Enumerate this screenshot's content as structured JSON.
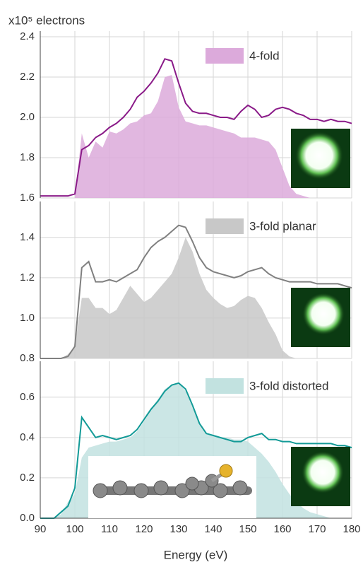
{
  "chart_data": [
    {
      "type": "line",
      "ylabel": "x10⁵ electrons",
      "x": [
        90,
        92,
        94,
        96,
        98,
        100,
        102,
        104,
        106,
        108,
        110,
        112,
        114,
        116,
        118,
        120,
        122,
        124,
        126,
        128,
        130,
        132,
        134,
        136,
        138,
        140,
        142,
        144,
        146,
        148,
        150,
        152,
        154,
        156,
        158,
        160,
        162,
        164,
        166,
        168,
        170,
        172,
        174,
        176,
        178,
        180
      ],
      "series": [
        {
          "name": "4-fold",
          "style": "area",
          "color": "#dcaadb",
          "values": [
            1.6,
            1.6,
            1.6,
            1.6,
            1.6,
            1.6,
            1.92,
            1.8,
            1.88,
            1.85,
            1.93,
            1.92,
            1.94,
            1.97,
            1.98,
            2.01,
            2.02,
            2.08,
            2.2,
            2.21,
            2.05,
            1.98,
            1.97,
            1.96,
            1.96,
            1.95,
            1.94,
            1.93,
            1.92,
            1.9,
            1.9,
            1.9,
            1.89,
            1.88,
            1.84,
            1.75,
            1.66,
            1.62,
            1.61,
            1.6,
            1.6,
            1.6,
            1.6,
            1.6,
            1.6,
            1.6
          ]
        },
        {
          "style": "line",
          "color": "#8a1a88",
          "values": [
            1.61,
            1.61,
            1.61,
            1.61,
            1.61,
            1.62,
            1.84,
            1.86,
            1.9,
            1.92,
            1.95,
            1.97,
            2.0,
            2.04,
            2.1,
            2.13,
            2.17,
            2.22,
            2.29,
            2.28,
            2.17,
            2.07,
            2.03,
            2.02,
            2.02,
            2.01,
            2.0,
            2.0,
            1.99,
            2.03,
            2.06,
            2.04,
            2.0,
            2.01,
            2.04,
            2.05,
            2.04,
            2.02,
            2.01,
            1.99,
            1.99,
            1.98,
            1.99,
            1.98,
            1.98,
            1.97
          ]
        }
      ],
      "xlim": [
        90,
        180
      ],
      "xticks": [
        90,
        100,
        110,
        120,
        130,
        140,
        150,
        160,
        170,
        180
      ],
      "ylim": [
        1.6,
        2.4
      ],
      "yticks": [
        {
          "value": 1.6,
          "label": "1.6"
        },
        {
          "value": 1.8,
          "label": "1.8"
        },
        {
          "value": 2,
          "label": "2.0"
        },
        {
          "value": 2.2,
          "label": "2.2"
        },
        {
          "value": 2.4,
          "label": "2.4"
        }
      ],
      "grid": true
    },
    {
      "type": "line",
      "x": [
        90,
        92,
        94,
        96,
        98,
        100,
        102,
        104,
        106,
        108,
        110,
        112,
        114,
        116,
        118,
        120,
        122,
        124,
        126,
        128,
        130,
        132,
        134,
        136,
        138,
        140,
        142,
        144,
        146,
        148,
        150,
        152,
        154,
        156,
        158,
        160,
        162,
        164,
        166,
        168,
        170,
        172,
        174,
        176,
        178,
        180
      ],
      "series": [
        {
          "name": "3-fold planar",
          "style": "area",
          "color": "#c8c8c8",
          "values": [
            0.8,
            0.8,
            0.8,
            0.8,
            0.82,
            0.86,
            1.1,
            1.1,
            1.05,
            1.05,
            1.02,
            1.04,
            1.1,
            1.16,
            1.12,
            1.08,
            1.1,
            1.14,
            1.18,
            1.22,
            1.3,
            1.4,
            1.33,
            1.22,
            1.14,
            1.1,
            1.07,
            1.05,
            1.06,
            1.09,
            1.11,
            1.1,
            1.05,
            0.98,
            0.92,
            0.84,
            0.81,
            0.8,
            0.8,
            0.8,
            0.8,
            0.8,
            0.8,
            0.8,
            0.8,
            0.8
          ]
        },
        {
          "style": "line",
          "color": "#808080",
          "values": [
            0.8,
            0.8,
            0.8,
            0.8,
            0.81,
            0.86,
            1.25,
            1.28,
            1.18,
            1.18,
            1.19,
            1.18,
            1.2,
            1.22,
            1.24,
            1.3,
            1.35,
            1.38,
            1.4,
            1.43,
            1.46,
            1.45,
            1.38,
            1.3,
            1.25,
            1.23,
            1.22,
            1.21,
            1.2,
            1.21,
            1.23,
            1.24,
            1.25,
            1.22,
            1.2,
            1.19,
            1.18,
            1.18,
            1.18,
            1.18,
            1.17,
            1.17,
            1.17,
            1.17,
            1.16,
            1.15
          ]
        }
      ],
      "xlim": [
        90,
        180
      ],
      "xticks": [
        90,
        100,
        110,
        120,
        130,
        140,
        150,
        160,
        170,
        180
      ],
      "ylim": [
        0.8,
        1.55
      ],
      "yticks": [
        0.8,
        {
          "value": 1,
          "label": "1.0"
        },
        1.2,
        1.4
      ],
      "grid": true
    },
    {
      "type": "line",
      "xlabel": "Energy (eV)",
      "x": [
        90,
        92,
        94,
        96,
        98,
        100,
        102,
        104,
        106,
        108,
        110,
        112,
        114,
        116,
        118,
        120,
        122,
        124,
        126,
        128,
        130,
        132,
        134,
        136,
        138,
        140,
        142,
        144,
        146,
        148,
        150,
        152,
        154,
        156,
        158,
        160,
        162,
        164,
        166,
        168,
        170,
        172,
        174,
        176,
        178,
        180
      ],
      "series": [
        {
          "name": "3-fold distorted",
          "style": "area",
          "color": "#c2e2e0",
          "values": [
            0,
            0,
            0,
            0.02,
            0.08,
            0.12,
            0.3,
            0.35,
            0.36,
            0.37,
            0.38,
            0.38,
            0.39,
            0.4,
            0.43,
            0.48,
            0.54,
            0.59,
            0.64,
            0.66,
            0.67,
            0.63,
            0.55,
            0.47,
            0.42,
            0.41,
            0.4,
            0.4,
            0.39,
            0.39,
            0.38,
            0.35,
            0.32,
            0.28,
            0.23,
            0.17,
            0.12,
            0.08,
            0.05,
            0.03,
            0.02,
            0.01,
            0,
            0,
            0,
            0
          ]
        },
        {
          "style": "line",
          "color": "#129a97",
          "values": [
            0,
            0,
            0,
            0.03,
            0.06,
            0.15,
            0.5,
            0.45,
            0.4,
            0.41,
            0.4,
            0.39,
            0.4,
            0.41,
            0.44,
            0.49,
            0.54,
            0.58,
            0.63,
            0.66,
            0.67,
            0.64,
            0.56,
            0.47,
            0.42,
            0.41,
            0.4,
            0.39,
            0.38,
            0.38,
            0.4,
            0.41,
            0.42,
            0.39,
            0.39,
            0.38,
            0.38,
            0.37,
            0.37,
            0.37,
            0.37,
            0.37,
            0.37,
            0.36,
            0.36,
            0.35
          ]
        }
      ],
      "xlim": [
        90,
        180
      ],
      "xticks": [
        90,
        100,
        110,
        120,
        130,
        140,
        150,
        160,
        170,
        180
      ],
      "ylim": [
        0,
        0.75
      ],
      "yticks": [
        {
          "value": 0,
          "label": "0.0"
        },
        0.2,
        0.4,
        0.6
      ],
      "grid": true
    }
  ]
}
